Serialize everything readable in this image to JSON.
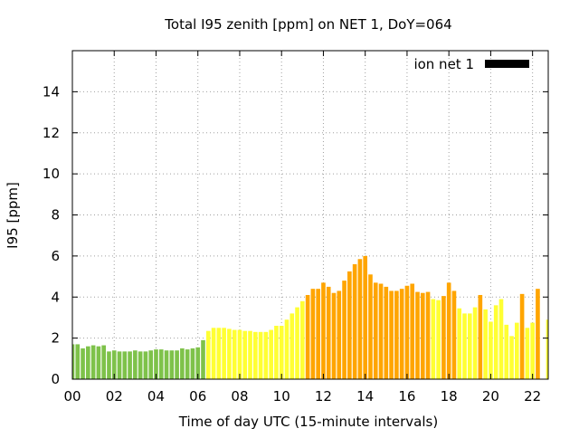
{
  "chart_data": {
    "type": "bar",
    "title": "Total I95 zenith [ppm] on NET 1, DoY=064",
    "xlabel": "Time of day UTC (15-minute intervals)",
    "ylabel": "I95 [ppm]",
    "xlim": [
      0,
      22.75
    ],
    "ylim": [
      0,
      16
    ],
    "x_ticks": [
      "00",
      "02",
      "04",
      "06",
      "08",
      "10",
      "12",
      "14",
      "16",
      "18",
      "20",
      "22"
    ],
    "y_ticks": [
      "0",
      "2",
      "4",
      "6",
      "8",
      "10",
      "12",
      "14"
    ],
    "grid": true,
    "legend": {
      "position": "top-right",
      "entries": [
        {
          "name": "ion net 1",
          "color": "#000000"
        }
      ]
    },
    "colors": {
      "green": "#7ec24a",
      "yellow": "#ffff33",
      "orange": "#ffa500"
    },
    "bar_width_hours": 0.2,
    "series": [
      {
        "name": "ion net 1",
        "values": [
          1.7,
          1.7,
          1.5,
          1.6,
          1.65,
          1.6,
          1.65,
          1.35,
          1.4,
          1.35,
          1.35,
          1.35,
          1.4,
          1.35,
          1.35,
          1.4,
          1.45,
          1.45,
          1.4,
          1.4,
          1.4,
          1.5,
          1.45,
          1.5,
          1.55,
          1.9,
          2.35,
          2.5,
          2.5,
          2.5,
          2.45,
          2.4,
          2.4,
          2.35,
          2.35,
          2.3,
          2.3,
          2.3,
          2.4,
          2.6,
          2.6,
          2.9,
          3.2,
          3.5,
          3.8,
          4.1,
          4.4,
          4.4,
          4.7,
          4.5,
          4.2,
          4.3,
          4.8,
          5.25,
          5.6,
          5.85,
          6.0,
          5.1,
          4.7,
          4.65,
          4.5,
          4.3,
          4.3,
          4.4,
          4.55,
          4.65,
          4.25,
          4.2,
          4.25,
          3.9,
          3.85,
          4.05,
          4.7,
          4.3,
          3.45,
          3.2,
          3.2,
          3.5,
          4.1,
          3.4,
          2.8,
          3.6,
          3.9,
          2.65,
          2.1,
          2.75,
          4.15,
          2.5,
          2.75,
          4.4,
          0.0,
          2.9,
          3.7
        ],
        "colors": [
          "green",
          "green",
          "green",
          "green",
          "green",
          "green",
          "green",
          "green",
          "green",
          "green",
          "green",
          "green",
          "green",
          "green",
          "green",
          "green",
          "green",
          "green",
          "green",
          "green",
          "green",
          "green",
          "green",
          "green",
          "green",
          "green",
          "yellow",
          "yellow",
          "yellow",
          "yellow",
          "yellow",
          "yellow",
          "yellow",
          "yellow",
          "yellow",
          "yellow",
          "yellow",
          "yellow",
          "yellow",
          "yellow",
          "yellow",
          "yellow",
          "yellow",
          "yellow",
          "yellow",
          "orange",
          "orange",
          "orange",
          "orange",
          "orange",
          "orange",
          "orange",
          "orange",
          "orange",
          "orange",
          "orange",
          "orange",
          "orange",
          "orange",
          "orange",
          "orange",
          "orange",
          "orange",
          "orange",
          "orange",
          "orange",
          "orange",
          "orange",
          "orange",
          "yellow",
          "yellow",
          "orange",
          "orange",
          "orange",
          "yellow",
          "yellow",
          "yellow",
          "yellow",
          "orange",
          "yellow",
          "yellow",
          "yellow",
          "yellow",
          "yellow",
          "yellow",
          "yellow",
          "orange",
          "yellow",
          "yellow",
          "orange",
          "yellow",
          "yellow",
          "yellow"
        ]
      }
    ]
  }
}
